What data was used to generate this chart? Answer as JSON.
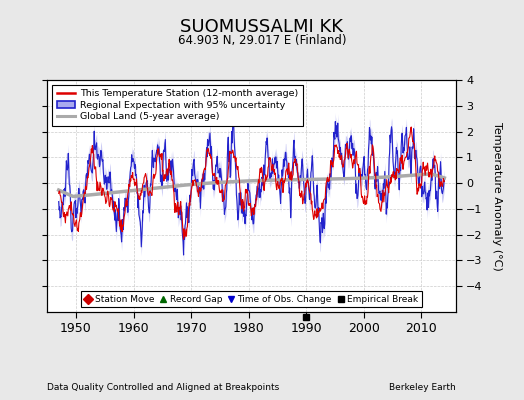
{
  "title": "SUOMUSSALMI KK",
  "subtitle": "64.903 N, 29.017 E (Finland)",
  "xlabel_bottom": "Data Quality Controlled and Aligned at Breakpoints",
  "xlabel_right": "Berkeley Earth",
  "ylabel": "Temperature Anomaly (°C)",
  "xlim": [
    1945,
    2016
  ],
  "ylim": [
    -5,
    4
  ],
  "yticks": [
    -4,
    -3,
    -2,
    -1,
    0,
    1,
    2,
    3,
    4
  ],
  "xticks": [
    1950,
    1960,
    1970,
    1980,
    1990,
    2000,
    2010
  ],
  "bg_color": "#e8e8e8",
  "plot_bg_color": "#ffffff",
  "station_line_color": "#dd0000",
  "regional_line_color": "#2222cc",
  "regional_fill_color": "#aaaaee",
  "global_line_color": "#aaaaaa",
  "legend_items": [
    "This Temperature Station (12-month average)",
    "Regional Expectation with 95% uncertainty",
    "Global Land (5-year average)"
  ],
  "marker_legend": [
    {
      "label": "Station Move",
      "color": "#cc0000",
      "marker": "D"
    },
    {
      "label": "Record Gap",
      "color": "#006600",
      "marker": "^"
    },
    {
      "label": "Time of Obs. Change",
      "color": "#0000cc",
      "marker": "v"
    },
    {
      "label": "Empirical Break",
      "color": "#000000",
      "marker": "s"
    }
  ],
  "empirical_break_year": 1990,
  "seed": 42
}
